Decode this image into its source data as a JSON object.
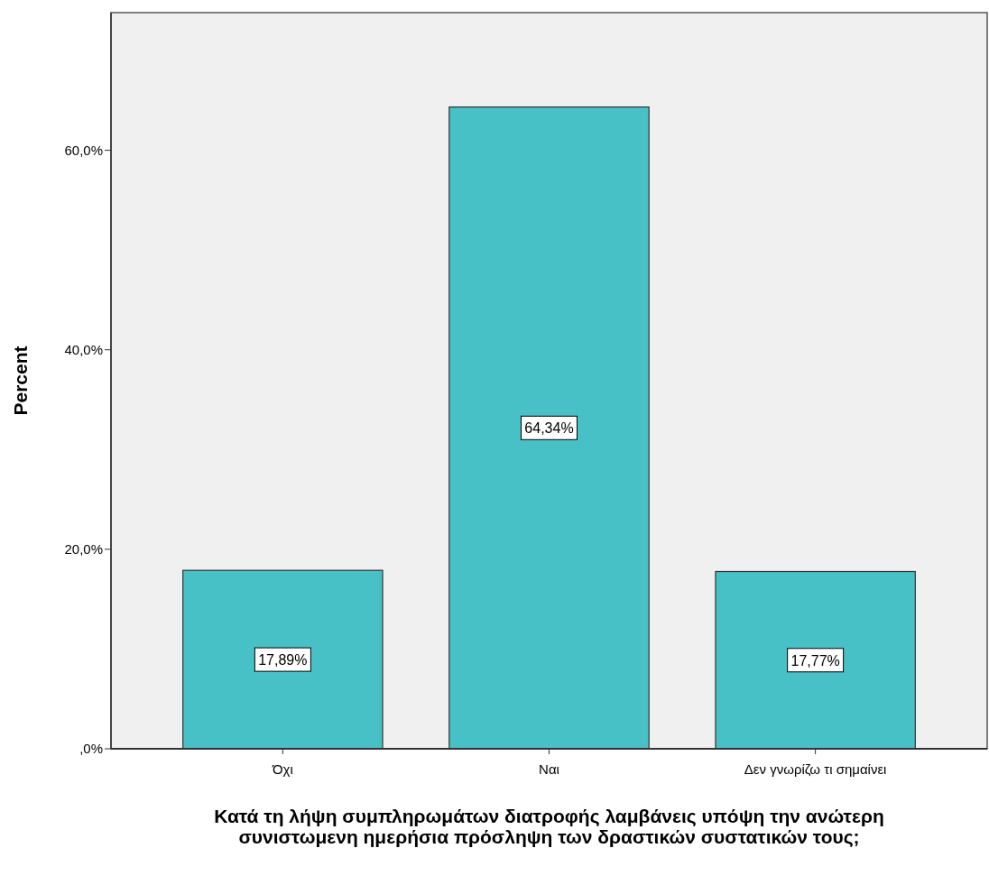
{
  "chart_data": {
    "type": "bar",
    "xlabel": "Κατά τη λήψη συμπληρωμάτων διατροφής λαμβάνεις υπόψη την ανώτερη συνιστωμενη ημερήσια πρόσληψη των δραστικών συστατικών τους;",
    "ylabel": "Percent",
    "categories": [
      "Όχι",
      "Ναι",
      "Δεν γνωρίζω τι σημαίνει"
    ],
    "values": [
      17.89,
      64.34,
      17.77
    ],
    "value_labels": [
      "17,89%",
      "64,34%",
      "17,77%"
    ],
    "color": "#48c1c6",
    "ylim": [
      0,
      73.8
    ],
    "yticks": [
      {
        "value": 0,
        "label": ",0%"
      },
      {
        "value": 20,
        "label": "20,0%"
      },
      {
        "value": 40,
        "label": "40,0%"
      },
      {
        "value": 60,
        "label": "60,0%"
      }
    ],
    "grid": false
  }
}
